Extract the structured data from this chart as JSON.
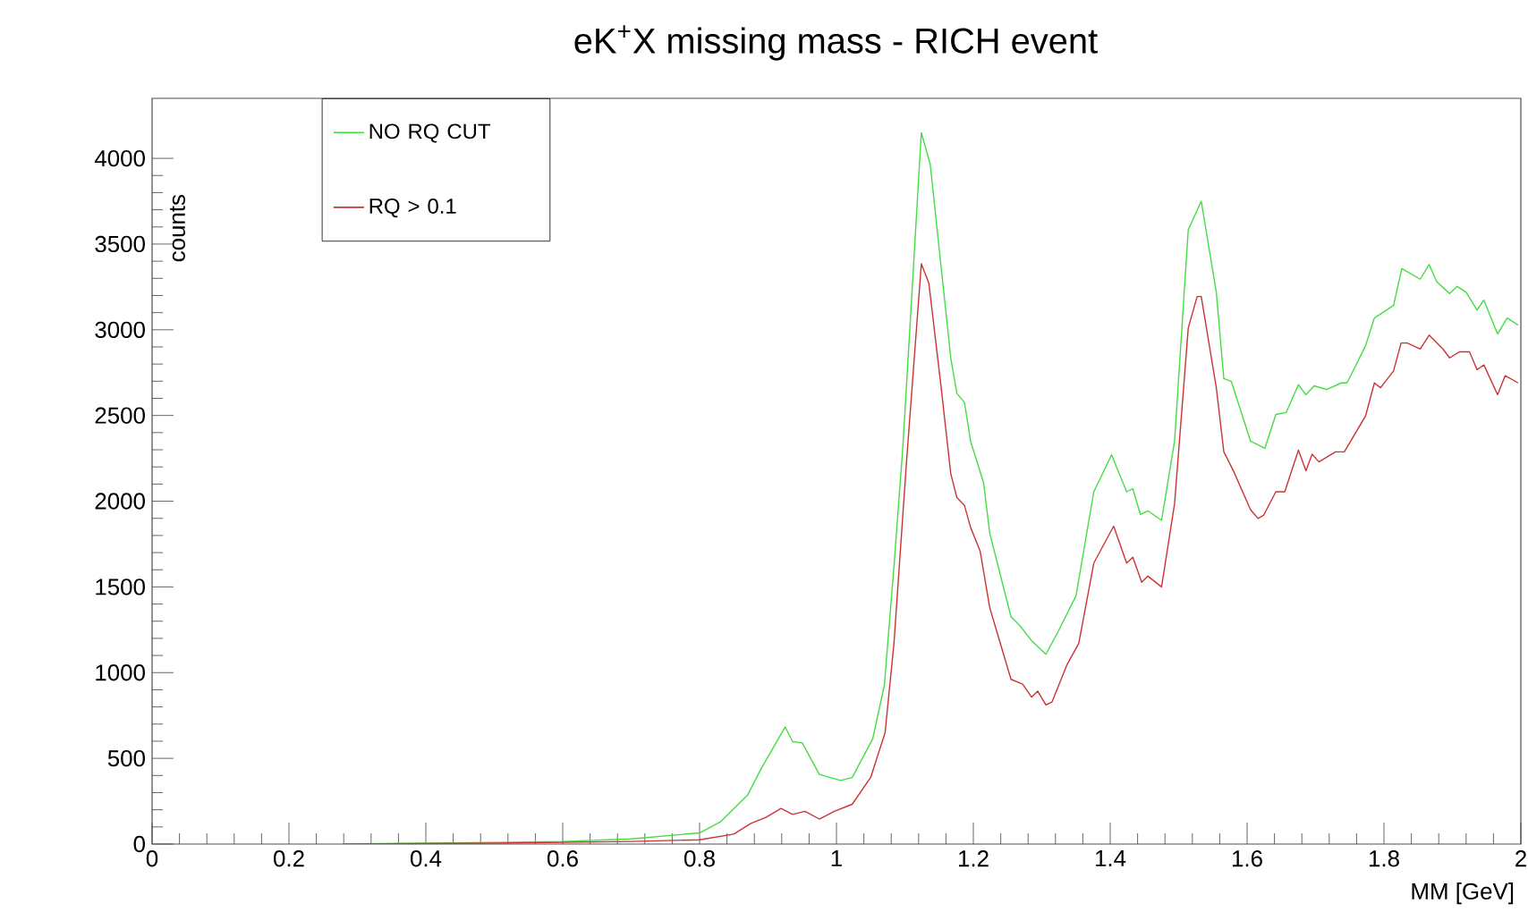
{
  "chart_data": {
    "type": "line",
    "title": "eK$^{+}$X missing mass - RICH event",
    "xlabel": "MM [GeV]",
    "ylabel": "counts",
    "xlim": [
      0,
      2
    ],
    "ylim": [
      0,
      4350
    ],
    "xticks": [
      0,
      0.2,
      0.4,
      0.6,
      0.8,
      1,
      1.2,
      1.4,
      1.6,
      1.8,
      2
    ],
    "yticks": [
      0,
      500,
      1000,
      1500,
      2000,
      2500,
      3000,
      3500,
      4000
    ],
    "legend": "top left",
    "series": [
      {
        "name": "NO RQ CUT",
        "color": "#44dd44",
        "x": [
          0.28,
          0.4,
          0.5,
          0.6,
          0.7,
          0.8,
          0.83,
          0.87,
          0.89,
          0.925,
          0.936,
          0.95,
          0.975,
          1.006,
          1.023,
          1.053,
          1.07,
          1.084,
          1.097,
          1.124,
          1.137,
          1.167,
          1.176,
          1.187,
          1.196,
          1.215,
          1.224,
          1.255,
          1.268,
          1.285,
          1.306,
          1.324,
          1.35,
          1.376,
          1.402,
          1.424,
          1.433,
          1.444,
          1.455,
          1.475,
          1.494,
          1.514,
          1.533,
          1.555,
          1.566,
          1.577,
          1.605,
          1.626,
          1.642,
          1.657,
          1.675,
          1.686,
          1.698,
          1.716,
          1.738,
          1.746,
          1.773,
          1.786,
          1.814,
          1.826,
          1.853,
          1.866,
          1.877,
          1.896,
          1.907,
          1.92,
          1.936,
          1.946,
          1.966,
          1.98,
          1.996
        ],
        "values": [
          0,
          5,
          10,
          15,
          30,
          65,
          128,
          285,
          440,
          683,
          597,
          590,
          406,
          371,
          388,
          615,
          927,
          1620,
          2315,
          4150,
          3965,
          2836,
          2628,
          2576,
          2350,
          2107,
          1812,
          1326,
          1274,
          1187,
          1107,
          1240,
          1448,
          2055,
          2270,
          2055,
          2073,
          1923,
          1944,
          1888,
          2350,
          3583,
          3750,
          3219,
          2715,
          2698,
          2350,
          2308,
          2506,
          2517,
          2680,
          2621,
          2673,
          2652,
          2690,
          2690,
          2906,
          3069,
          3142,
          3357,
          3295,
          3381,
          3281,
          3211,
          3253,
          3219,
          3115,
          3173,
          2975,
          3069,
          3027
        ]
      },
      {
        "name": "RQ > 0.1",
        "color": "#cc3333",
        "x": [
          0.28,
          0.5,
          0.7,
          0.8,
          0.85,
          0.875,
          0.897,
          0.919,
          0.936,
          0.954,
          0.975,
          0.997,
          1.023,
          1.05,
          1.071,
          1.084,
          1.102,
          1.124,
          1.135,
          1.153,
          1.167,
          1.176,
          1.187,
          1.196,
          1.21,
          1.224,
          1.255,
          1.272,
          1.285,
          1.294,
          1.306,
          1.315,
          1.337,
          1.354,
          1.376,
          1.405,
          1.424,
          1.433,
          1.446,
          1.455,
          1.475,
          1.494,
          1.514,
          1.527,
          1.533,
          1.555,
          1.566,
          1.58,
          1.605,
          1.616,
          1.624,
          1.642,
          1.655,
          1.675,
          1.686,
          1.695,
          1.705,
          1.729,
          1.742,
          1.773,
          1.786,
          1.795,
          1.814,
          1.825,
          1.834,
          1.853,
          1.866,
          1.886,
          1.896,
          1.91,
          1.925,
          1.936,
          1.946,
          1.966,
          1.977,
          1.996
        ],
        "values": [
          0,
          5,
          15,
          25,
          58,
          121,
          156,
          208,
          173,
          191,
          146,
          191,
          232,
          389,
          649,
          1170,
          2211,
          3385,
          3271,
          2662,
          2160,
          2021,
          1975,
          1847,
          1708,
          1378,
          961,
          933,
          857,
          892,
          812,
          829,
          1048,
          1170,
          1639,
          1854,
          1639,
          1673,
          1527,
          1563,
          1500,
          1985,
          3010,
          3194,
          3194,
          2662,
          2288,
          2177,
          1951,
          1899,
          1917,
          2055,
          2055,
          2298,
          2177,
          2274,
          2229,
          2288,
          2288,
          2496,
          2690,
          2662,
          2760,
          2923,
          2923,
          2888,
          2969,
          2888,
          2836,
          2871,
          2871,
          2767,
          2795,
          2621,
          2732,
          2690
        ]
      }
    ]
  }
}
